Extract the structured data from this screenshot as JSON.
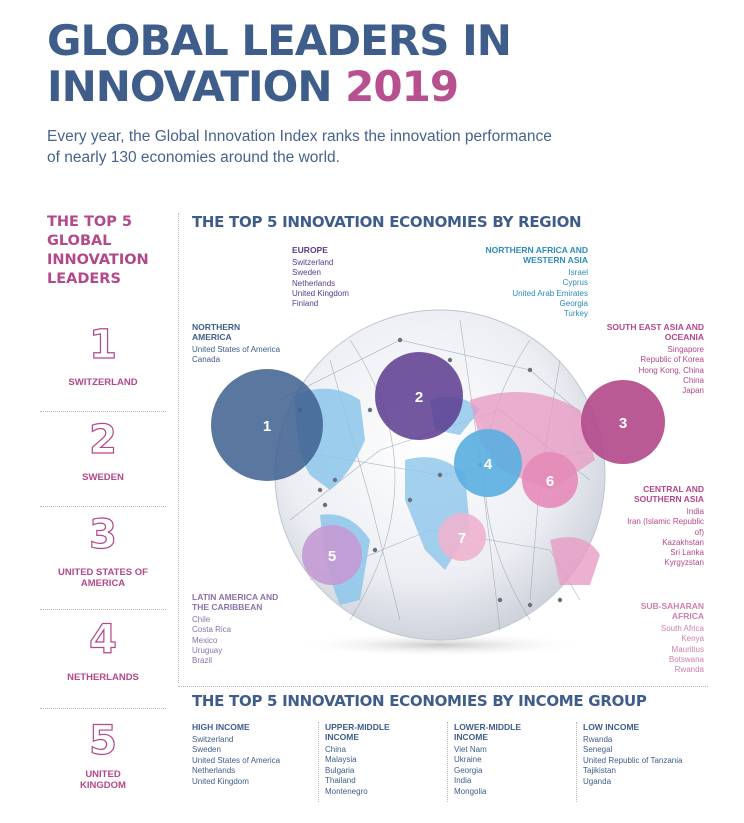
{
  "header": {
    "title_line1": "GLOBAL LEADERS IN",
    "title_line2": "INNOVATION",
    "title_year": "2019",
    "subtitle": "Every year, the Global Innovation Index ranks the innovation performance of nearly 130 economies around the world."
  },
  "top5": {
    "heading": "THE TOP 5 GLOBAL INNOVATION LEADERS",
    "items": [
      {
        "rank": "1",
        "name": "SWITZERLAND"
      },
      {
        "rank": "2",
        "name": "SWEDEN"
      },
      {
        "rank": "3",
        "name": "UNITED STATES OF AMERICA"
      },
      {
        "rank": "4",
        "name": "NETHERLANDS"
      },
      {
        "rank": "5",
        "name": "UNITED KINGDOM"
      }
    ]
  },
  "by_region": {
    "heading": "THE TOP 5 INNOVATION ECONOMIES BY REGION",
    "regions": {
      "europe": {
        "name": "EUROPE",
        "countries": [
          "Switzerland",
          "Sweden",
          "Netherlands",
          "United Kingdom",
          "Finland"
        ]
      },
      "na_wa": {
        "name": "NORTHERN AFRICA AND WESTERN ASIA",
        "countries": [
          "Israel",
          "Cyprus",
          "United Arab Emirates",
          "Georgia",
          "Turkey"
        ]
      },
      "north_america": {
        "name": "NORTHERN AMERICA",
        "countries": [
          "United States of America",
          "Canada"
        ]
      },
      "sea_oceania": {
        "name": "SOUTH EAST ASIA AND OCEANIA",
        "countries": [
          "Singapore",
          "Republic of Korea",
          "Hong Kong, China",
          "China",
          "Japan"
        ]
      },
      "central_southern_asia": {
        "name": "CENTRAL AND SOUTHERN ASIA",
        "countries": [
          "India",
          "Iran (Islamic Republic of)",
          "Kazakhstan",
          "Sri Lanka",
          "Kyrgyzstan"
        ]
      },
      "latin_america": {
        "name": "LATIN AMERICA AND THE CARIBBEAN",
        "countries": [
          "Chile",
          "Costa Rica",
          "Mexico",
          "Uruguay",
          "Brazil"
        ]
      },
      "sub_saharan": {
        "name": "SUB-SAHARAN AFRICA",
        "countries": [
          "South Africa",
          "Kenya",
          "Mauritius",
          "Botswana",
          "Rwanda"
        ]
      }
    },
    "bubbles": [
      "1",
      "2",
      "3",
      "4",
      "5",
      "6",
      "7"
    ]
  },
  "by_income": {
    "heading": "THE TOP 5 INNOVATION ECONOMIES BY INCOME GROUP",
    "groups": [
      {
        "name": "HIGH INCOME",
        "countries": [
          "Switzerland",
          "Sweden",
          "United States of America",
          "Netherlands",
          "United Kingdom"
        ]
      },
      {
        "name": "UPPER-MIDDLE INCOME",
        "countries": [
          "China",
          "Malaysia",
          "Bulgaria",
          "Thailand",
          "Montenegro"
        ]
      },
      {
        "name": "LOWER-MIDDLE INCOME",
        "countries": [
          "Viet Nam",
          "Ukraine",
          "Georgia",
          "India",
          "Mongolia"
        ]
      },
      {
        "name": "LOW INCOME",
        "countries": [
          "Rwanda",
          "Senegal",
          "United Republic of Tanzania",
          "Tajikistan",
          "Uganda"
        ]
      }
    ]
  },
  "colors": {
    "navy": "#3f5d8a",
    "magenta": "#b3488a",
    "purple": "#5a3b8f",
    "sky": "#5ab0e0",
    "pink": "#e58bb8",
    "lilac": "#c39ad4"
  }
}
